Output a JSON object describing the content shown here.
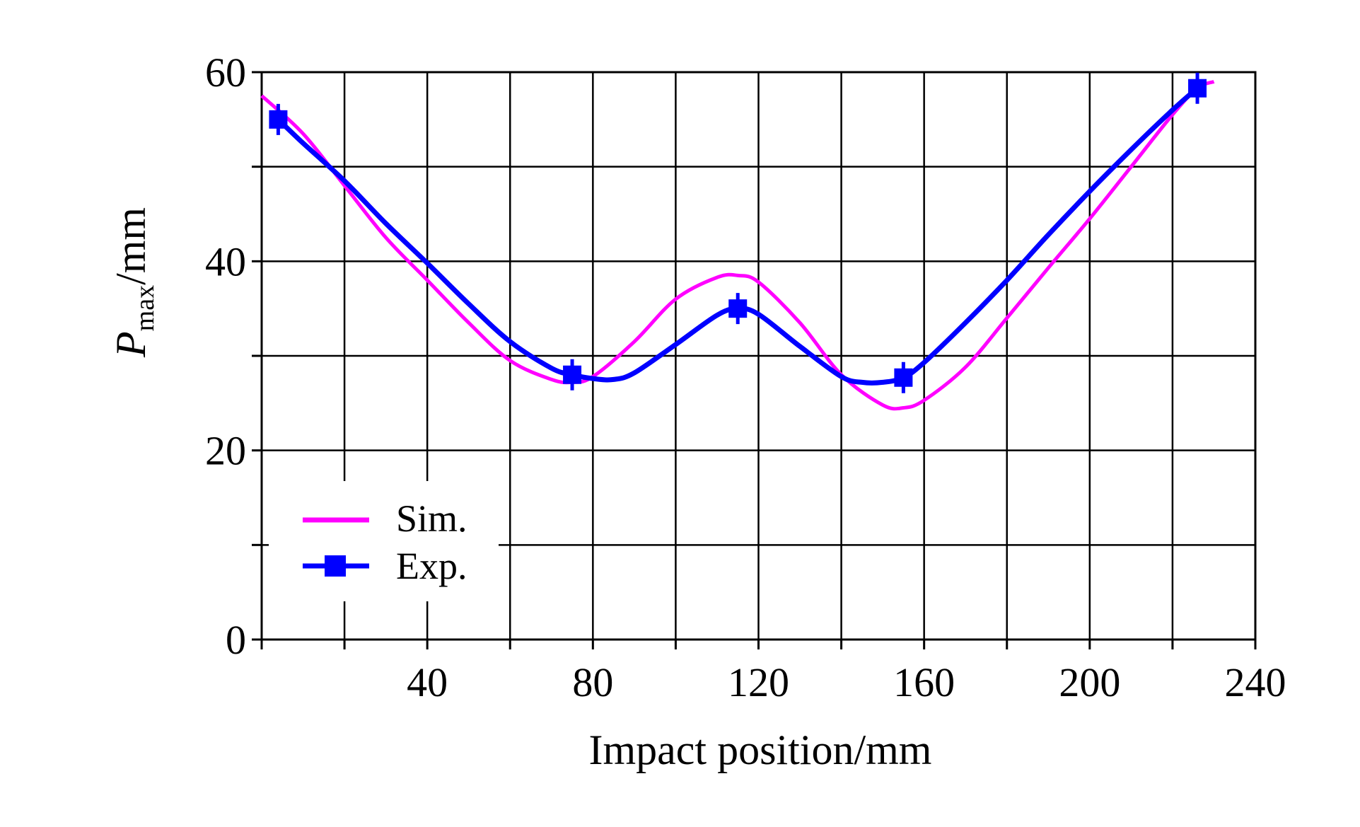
{
  "chart_data": {
    "type": "line",
    "title": "",
    "xlabel": "Impact position/mm",
    "ylabel_main": "P",
    "ylabel_sub": "max",
    "ylabel_unit": "/mm",
    "xlim": [
      0,
      240
    ],
    "ylim": [
      0,
      60
    ],
    "xticks": [
      0,
      20,
      40,
      60,
      80,
      100,
      120,
      140,
      160,
      180,
      200,
      220,
      240
    ],
    "xtick_labels": [
      "",
      "",
      "40",
      "",
      "80",
      "",
      "120",
      "",
      "160",
      "",
      "200",
      "",
      "240"
    ],
    "yticks": [
      0,
      10,
      20,
      30,
      40,
      50,
      60
    ],
    "ytick_labels": [
      "0",
      "",
      "20",
      "",
      "40",
      "",
      "60"
    ],
    "grid": true,
    "legend_position": "bottom-left",
    "series": [
      {
        "name": "Sim.",
        "color": "#ff00ff",
        "marker": "none",
        "x": [
          0,
          10,
          20,
          30,
          40,
          50,
          60,
          70,
          75,
          80,
          90,
          100,
          110,
          115,
          120,
          130,
          140,
          150,
          155,
          160,
          170,
          180,
          190,
          200,
          210,
          220,
          226,
          230
        ],
        "y": [
          57.5,
          53.5,
          48,
          42.5,
          38,
          33.5,
          29.5,
          27.5,
          27.2,
          27.8,
          31.5,
          36,
          38.3,
          38.5,
          37.8,
          33.5,
          28,
          24.8,
          24.5,
          25.3,
          28.8,
          34,
          39.3,
          44.5,
          50,
          55.5,
          58.3,
          59
        ]
      },
      {
        "name": "Exp.",
        "color": "#0000ff",
        "marker": "square",
        "x": [
          4,
          75,
          115,
          155,
          226
        ],
        "y": [
          55,
          28,
          35,
          27.7,
          58.3
        ],
        "curve_x": [
          4,
          10,
          20,
          30,
          40,
          50,
          60,
          70,
          75,
          80,
          85,
          90,
          100,
          110,
          115,
          120,
          130,
          140,
          145,
          150,
          155,
          160,
          170,
          180,
          190,
          200,
          210,
          220,
          226
        ],
        "curve_y": [
          55,
          52.5,
          48.5,
          44,
          39.8,
          35.5,
          31.5,
          28.7,
          28,
          27.6,
          27.5,
          28.2,
          31.2,
          34.3,
          35,
          34.4,
          31,
          27.8,
          27.2,
          27.2,
          27.7,
          29.3,
          33.5,
          38,
          42.8,
          47.4,
          51.8,
          56,
          58.3
        ]
      }
    ]
  }
}
